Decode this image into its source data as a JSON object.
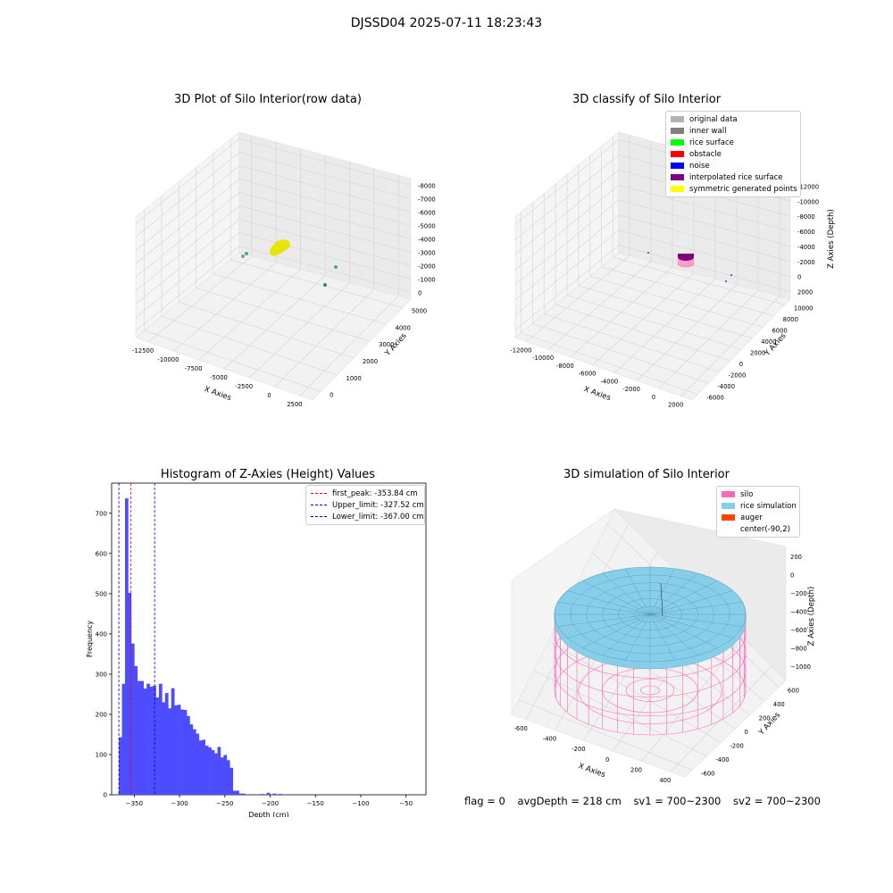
{
  "suptitle": "DJSSD04 2025-07-11 18:23:43",
  "footer": {
    "flag": "flag = 0",
    "avg_depth": "avgDepth = 218 cm",
    "sv1": "sv1 = 700~2300",
    "sv2": "sv2 = 700~2300"
  },
  "chart_data": [
    {
      "type": "scatter",
      "projection": "3d",
      "title": "3D Plot of Silo Interior(row data)",
      "xlabel": "X Axies",
      "ylabel": "Y Axies",
      "zlabel": "Z Axies (Depth)",
      "xticks": [
        "-12500",
        "-10000",
        "-7500",
        "-5000",
        "-2500",
        "0",
        "2500"
      ],
      "yticks": [
        "0",
        "1000",
        "2000",
        "3000",
        "4000",
        "5000"
      ],
      "zticks": [
        "0",
        "-1000",
        "-2000",
        "-3000",
        "-4000",
        "-5000",
        "-6000",
        "-7000",
        "-8000"
      ],
      "xlim": [
        -13500,
        3000
      ],
      "ylim": [
        -500,
        5500
      ],
      "zlim": [
        -8000,
        0
      ],
      "grid": true,
      "series_colors": {
        "points": "#3cb371",
        "cluster": "#e6e600"
      }
    },
    {
      "type": "scatter",
      "projection": "3d",
      "title": "3D classify of Silo Interior",
      "xlabel": "X Axies",
      "ylabel": "Y Axies",
      "zlabel": "Z Axies (Depth)",
      "xticks": [
        "-12000",
        "-10000",
        "-8000",
        "-6000",
        "-4000",
        "-2000",
        "0",
        "2000"
      ],
      "yticks": [
        "-6000",
        "-4000",
        "-2000",
        "0",
        "2000",
        "4000",
        "6000",
        "8000",
        "10000"
      ],
      "zticks": [
        "2000",
        "0",
        "-2000",
        "-4000",
        "-6000",
        "-8000",
        "-10000",
        "-12000"
      ],
      "xlim": [
        -13000,
        3000
      ],
      "ylim": [
        -6500,
        11000
      ],
      "zlim": [
        -12000,
        2000
      ],
      "grid": true,
      "legend_placement": "top-right",
      "legend": [
        {
          "label": "original data",
          "color": "#b3b3b3"
        },
        {
          "label": "inner wall",
          "color": "#808080"
        },
        {
          "label": "rice surface",
          "color": "#00ff00"
        },
        {
          "label": "obstacle",
          "color": "#ff0000"
        },
        {
          "label": "noise",
          "color": "#0000ff"
        },
        {
          "label": "interpolated rice surface",
          "color": "#800080"
        },
        {
          "label": "symmetric generated points",
          "color": "#ffff00"
        }
      ]
    },
    {
      "type": "bar",
      "title": "Histogram of Z-Axies (Height) Values",
      "xlabel": "Depth (cm)",
      "ylabel": "Frequency",
      "xlim": [
        -375,
        -28
      ],
      "ylim": [
        0,
        775
      ],
      "xticks": [
        -350,
        -300,
        -250,
        -200,
        -150,
        -100,
        -50
      ],
      "yticks": [
        0,
        100,
        200,
        300,
        400,
        500,
        600,
        700
      ],
      "bin_width": 3.4,
      "bin_start": -367,
      "color": "#4d4dff",
      "values": [
        143,
        276,
        737,
        502,
        376,
        320,
        283,
        283,
        264,
        276,
        269,
        271,
        242,
        276,
        230,
        253,
        215,
        265,
        222,
        224,
        212,
        211,
        196,
        175,
        163,
        152,
        135,
        137,
        122,
        118,
        111,
        103,
        119,
        93,
        99,
        86,
        67,
        10,
        10,
        3,
        3,
        0,
        0,
        0,
        0,
        0,
        2,
        0,
        5,
        0,
        3,
        0,
        2
      ],
      "vlines": [
        {
          "label": "first_peak: -353.84 cm",
          "x": -353.84,
          "color": "#ff0000"
        },
        {
          "label": "Upper_limit: -327.52 cm",
          "x": -327.52,
          "color": "#0000cc"
        },
        {
          "label": "Lower_limit: -367.00 cm",
          "x": -367.0,
          "color": "#0000cc"
        }
      ],
      "legend_placement": "top-right"
    },
    {
      "type": "surface",
      "projection": "3d",
      "title": "3D simulation of Silo Interior",
      "xlabel": "X Axies",
      "ylabel": "Y Axies",
      "zlabel": "Z Axies (Depth)",
      "xticks": [
        "-600",
        "-400",
        "-200",
        "0",
        "200",
        "400"
      ],
      "yticks": [
        "-600",
        "-400",
        "-200",
        "0",
        "200",
        "400",
        "600"
      ],
      "zticks": [
        "200",
        "0",
        "-200",
        "-400",
        "-600",
        "-800",
        "-1000"
      ],
      "zlim": [
        -1000,
        200
      ],
      "grid": true,
      "legend_placement": "top-right",
      "legend": [
        {
          "label": "silo",
          "color": "#ff69b4"
        },
        {
          "label": "rice simulation",
          "color": "#87ceeb"
        },
        {
          "label": "auger",
          "color": "#ff4500"
        },
        {
          "label": "center(-90,2)",
          "color": ""
        }
      ]
    }
  ]
}
